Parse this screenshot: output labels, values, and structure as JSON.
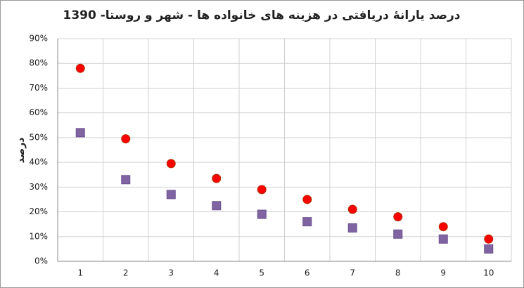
{
  "chart_data": {
    "type": "scatter",
    "title": "درصد یارانهٔ دریافتی در هزینه های خانواده ها - شهر و روستا- 1390",
    "y_label": "درصد",
    "categories": [
      "1",
      "2",
      "3",
      "4",
      "5",
      "6",
      "7",
      "8",
      "9",
      "10"
    ],
    "series": [
      {
        "color": "#ff0000",
        "marker": "circle",
        "values": [
          78,
          49.5,
          39.5,
          33.5,
          29,
          25,
          21,
          18,
          14,
          9
        ]
      },
      {
        "color": "#8064a2",
        "marker": "square",
        "values": [
          52,
          33,
          27,
          22.5,
          19,
          16,
          13.5,
          11,
          9,
          5
        ]
      }
    ],
    "ylim": [
      0,
      90
    ],
    "yticks": [
      {
        "value": 0,
        "label": "0%"
      },
      {
        "value": 10,
        "label": "10%"
      },
      {
        "value": 20,
        "label": "20%"
      },
      {
        "value": 30,
        "label": "30%"
      },
      {
        "value": 40,
        "label": "40%"
      },
      {
        "value": 50,
        "label": "50%"
      },
      {
        "value": 60,
        "label": "60%"
      },
      {
        "value": 70,
        "label": "70%"
      },
      {
        "value": 80,
        "label": "80%"
      },
      {
        "value": 90,
        "label": "90%"
      }
    ],
    "grid": true
  }
}
